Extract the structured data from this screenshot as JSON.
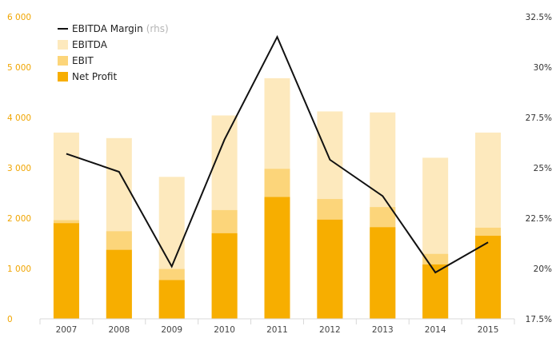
{
  "chart_data": {
    "type": "bar",
    "categories": [
      "2007",
      "2008",
      "2009",
      "2010",
      "2011",
      "2012",
      "2013",
      "2014",
      "2015"
    ],
    "series": [
      {
        "name": "EBITDA",
        "type": "bar",
        "axis": "left",
        "color": "#fde9bd",
        "values": [
          3700,
          3590,
          2820,
          4040,
          4780,
          4120,
          4100,
          3200,
          3700
        ]
      },
      {
        "name": "EBIT",
        "type": "bar",
        "axis": "left",
        "color": "#fcd57a",
        "values": [
          1960,
          1740,
          990,
          2160,
          2980,
          2380,
          2220,
          1290,
          1810
        ]
      },
      {
        "name": "Net Profit",
        "type": "bar",
        "axis": "left",
        "color": "#f7ae00",
        "values": [
          1900,
          1370,
          770,
          1700,
          2420,
          1970,
          1820,
          1080,
          1650
        ]
      },
      {
        "name": "EBITDA Margin",
        "type": "line",
        "axis": "right",
        "color": "#111111",
        "values": [
          25.7,
          24.8,
          20.1,
          26.4,
          31.5,
          25.4,
          23.6,
          19.8,
          21.3
        ]
      }
    ],
    "yleft": {
      "lim": [
        0,
        6000
      ],
      "ticks": [
        0,
        1000,
        2000,
        3000,
        4000,
        5000,
        6000
      ],
      "tick_labels": [
        "0",
        "1 000",
        "2 000",
        "3 000",
        "4 000",
        "5 000",
        "6 000"
      ]
    },
    "yright": {
      "lim": [
        17.5,
        32.5
      ],
      "ticks": [
        17.5,
        20,
        22.5,
        25,
        27.5,
        30,
        32.5
      ],
      "tick_labels": [
        "17.5%",
        "20%",
        "22.5%",
        "25%",
        "27.5%",
        "30%",
        "32.5%"
      ]
    },
    "legend": {
      "placement": "top-left",
      "items": [
        {
          "label": "EBITDA Margin",
          "note": "(rhs)",
          "kind": "line",
          "color": "#111111"
        },
        {
          "label": "EBITDA",
          "kind": "box",
          "color": "#fde9bd"
        },
        {
          "label": "EBIT",
          "kind": "box",
          "color": "#fcd57a"
        },
        {
          "label": "Net Profit",
          "kind": "box",
          "color": "#f7ae00"
        }
      ]
    },
    "grid": false,
    "colors": {
      "left_axis_text": "#f0a500",
      "axis_line": "#d8d8d8"
    }
  }
}
